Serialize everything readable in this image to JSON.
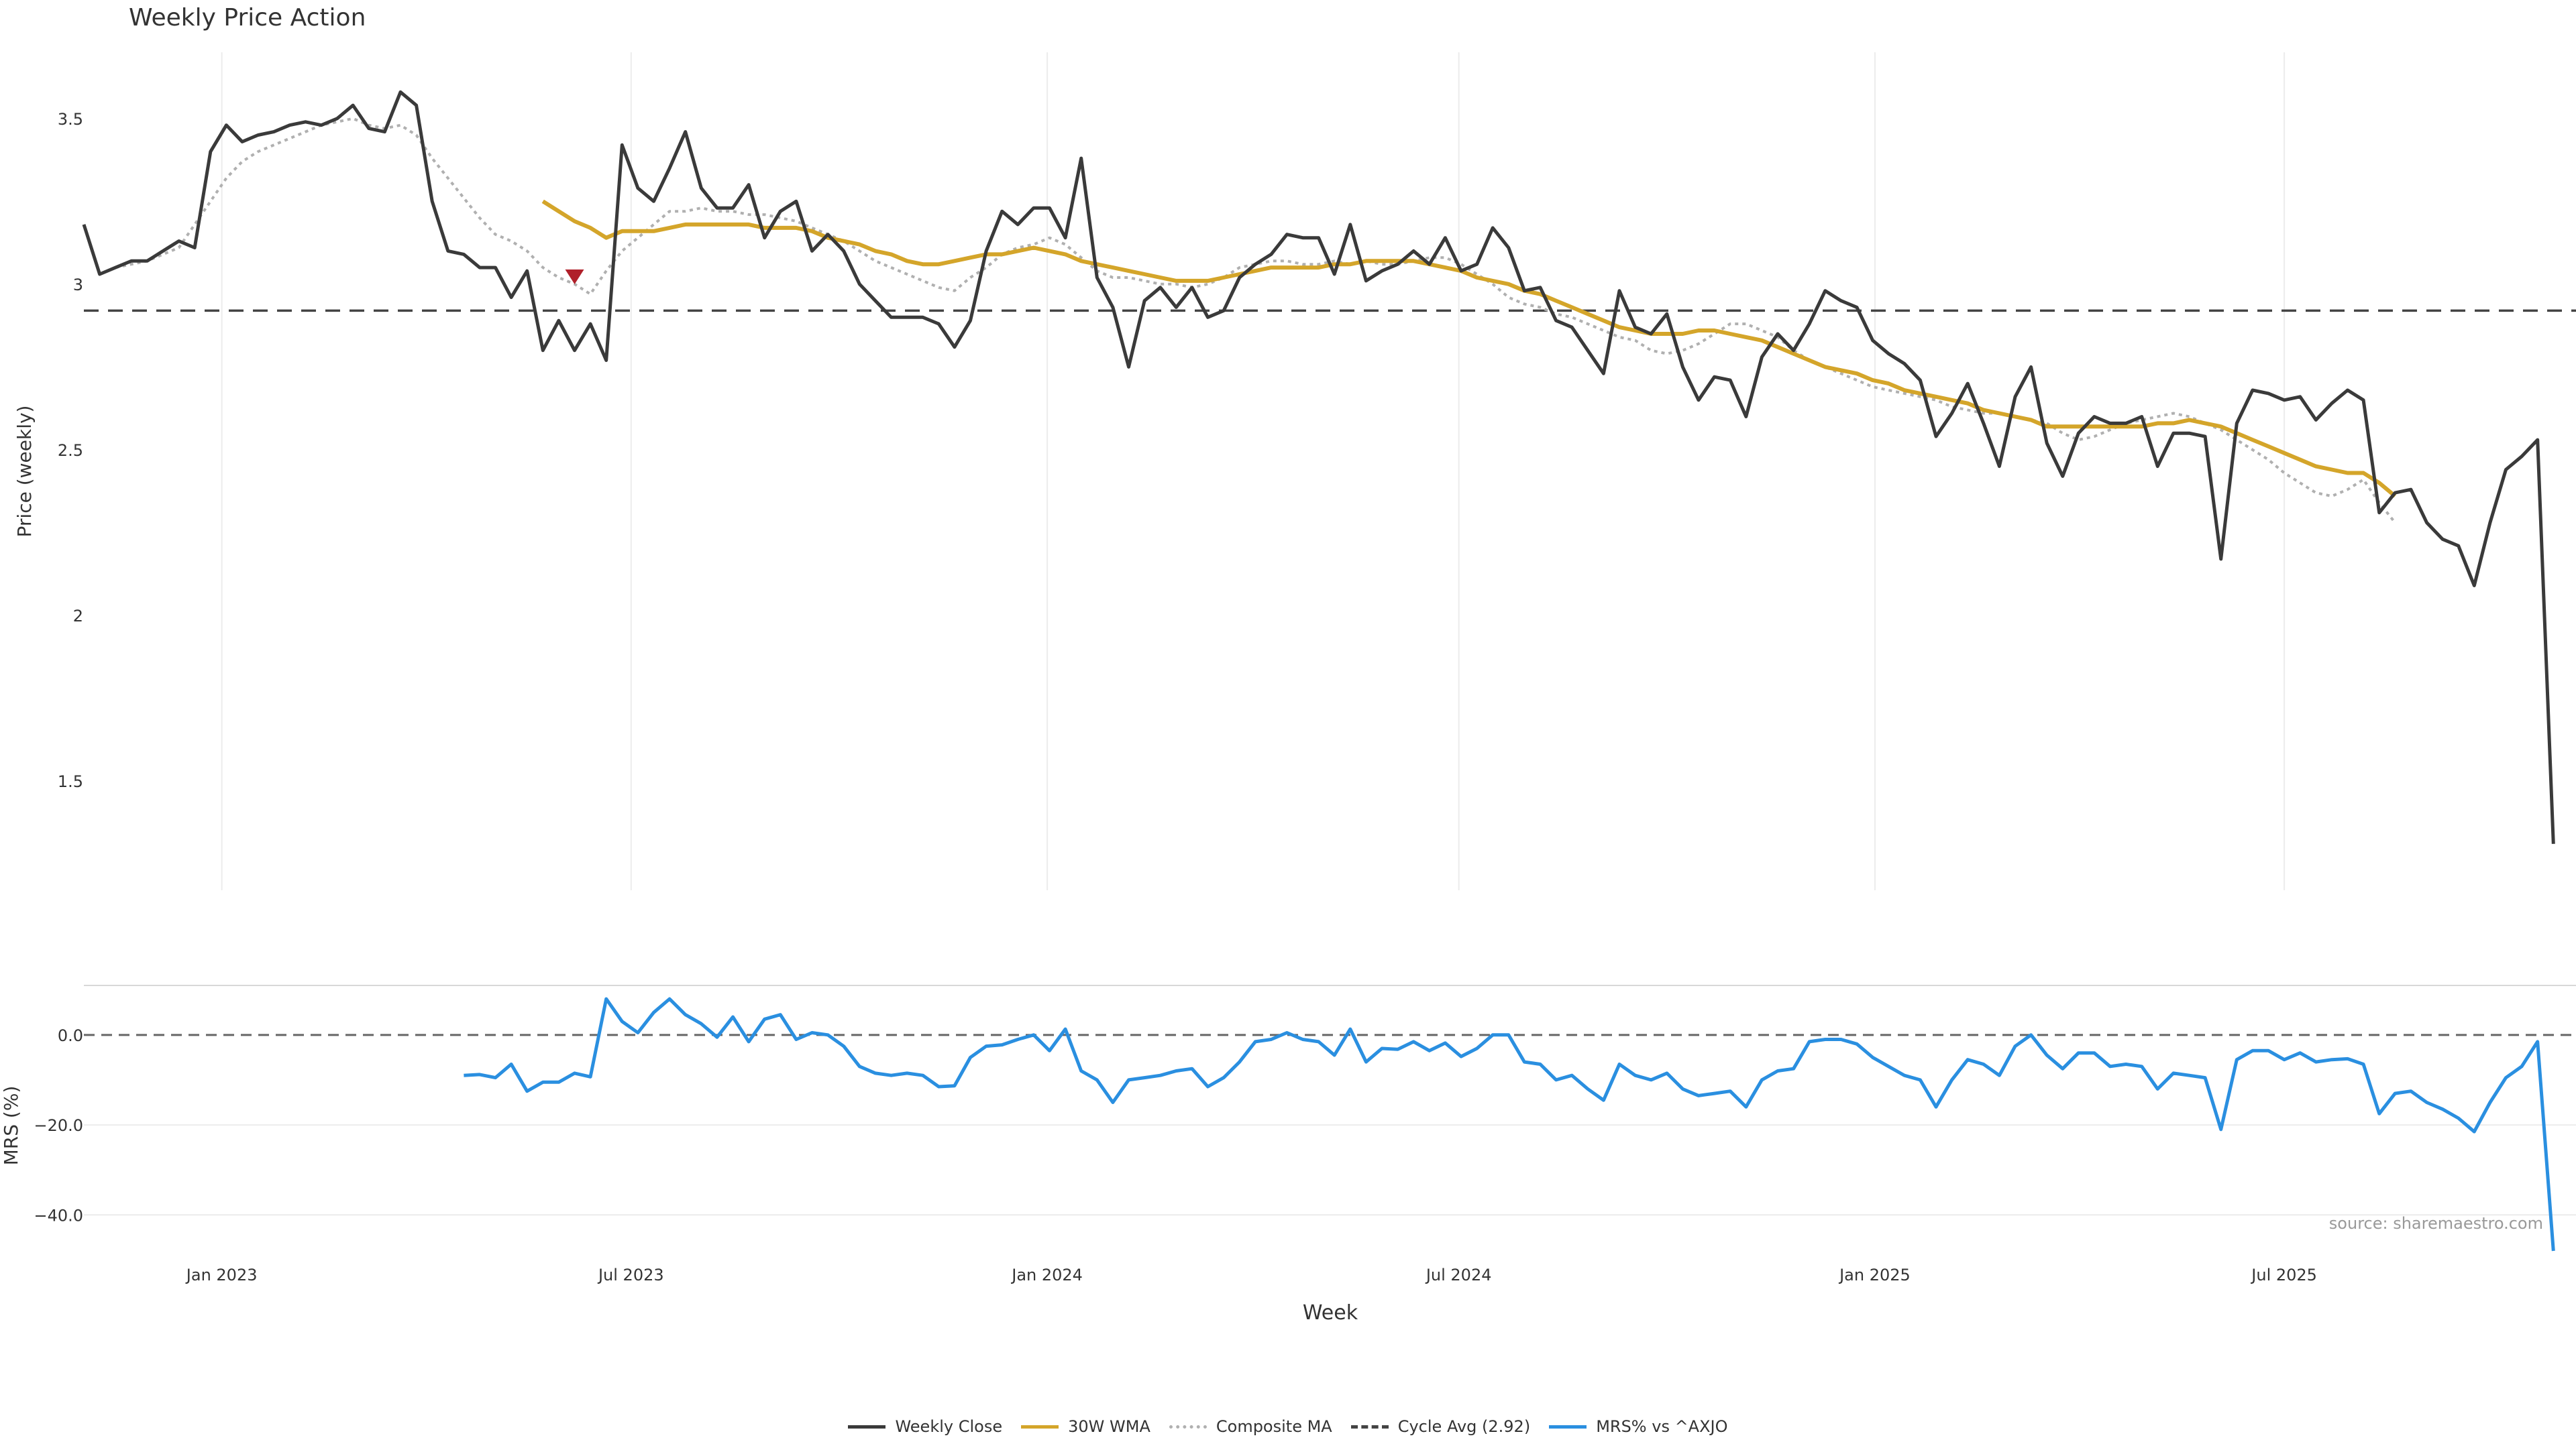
{
  "chart_data": [
    {
      "panel": "price",
      "type": "line",
      "title": "Weekly Price Action",
      "ylabel": "Price (weekly)",
      "ylim": [
        1.17,
        3.7
      ],
      "yticks": [
        1.5,
        2,
        2.5,
        3,
        3.5
      ],
      "ytick_labels": [
        "1.5",
        "2",
        "2.5",
        "3",
        "3.5"
      ],
      "x_start": "2022-11-01",
      "x_end": "2025-11-07",
      "grid": "vertical",
      "colors": {
        "close": "#3a3a3a",
        "wma": "#d4a52a",
        "composite": "#b0b0b0",
        "cycle": "#444444",
        "marker": "#b0202a"
      },
      "series": [
        {
          "name": "Weekly Close",
          "x_start": "2022-11-01",
          "x_step_days": 7,
          "values": [
            3.18,
            3.03,
            3.05,
            3.07,
            3.07,
            3.1,
            3.13,
            3.11,
            3.4,
            3.48,
            3.43,
            3.45,
            3.46,
            3.48,
            3.49,
            3.48,
            3.5,
            3.54,
            3.47,
            3.46,
            3.58,
            3.54,
            3.25,
            3.1,
            3.09,
            3.05,
            3.05,
            2.96,
            3.04,
            2.8,
            2.89,
            2.8,
            2.88,
            2.77,
            3.42,
            3.29,
            3.25,
            3.35,
            3.46,
            3.29,
            3.23,
            3.23,
            3.3,
            3.14,
            3.22,
            3.25,
            3.1,
            3.15,
            3.1,
            3.0,
            2.95,
            2.9,
            2.9,
            2.9,
            2.88,
            2.81,
            2.89,
            3.1,
            3.22,
            3.18,
            3.23,
            3.23,
            3.14,
            3.38,
            3.02,
            2.93,
            2.75,
            2.95,
            2.99,
            2.93,
            2.99,
            2.9,
            2.92,
            3.02,
            3.06,
            3.09,
            3.15,
            3.14,
            3.14,
            3.03,
            3.18,
            3.01,
            3.04,
            3.06,
            3.1,
            3.06,
            3.14,
            3.04,
            3.06,
            3.17,
            3.11,
            2.98,
            2.99,
            2.89,
            2.87,
            2.8,
            2.73,
            2.98,
            2.87,
            2.85,
            2.91,
            2.75,
            2.65,
            2.72,
            2.71,
            2.6,
            2.78,
            2.85,
            2.8,
            2.88,
            2.98,
            2.95,
            2.93,
            2.83,
            2.79,
            2.76,
            2.71,
            2.54,
            2.61,
            2.7,
            2.58,
            2.45,
            2.66,
            2.75,
            2.52,
            2.42,
            2.55,
            2.6,
            2.58,
            2.58,
            2.6,
            2.45,
            2.55,
            2.55,
            2.54,
            2.17,
            2.58,
            2.68,
            2.67,
            2.65,
            2.66,
            2.59,
            2.64,
            2.68,
            2.65,
            2.31,
            2.37,
            2.38,
            2.28,
            2.23,
            2.21,
            2.09,
            2.28,
            2.44,
            2.48,
            2.53,
            1.31
          ]
        },
        {
          "name": "30W WMA",
          "x_start": "2023-05-23",
          "x_step_days": 7,
          "values": [
            3.25,
            3.22,
            3.19,
            3.17,
            3.14,
            3.16,
            3.16,
            3.16,
            3.17,
            3.18,
            3.18,
            3.18,
            3.18,
            3.18,
            3.17,
            3.17,
            3.17,
            3.16,
            3.14,
            3.13,
            3.12,
            3.1,
            3.09,
            3.07,
            3.06,
            3.06,
            3.07,
            3.08,
            3.09,
            3.09,
            3.1,
            3.11,
            3.1,
            3.09,
            3.07,
            3.06,
            3.05,
            3.04,
            3.03,
            3.02,
            3.01,
            3.01,
            3.01,
            3.02,
            3.03,
            3.04,
            3.05,
            3.05,
            3.05,
            3.05,
            3.06,
            3.06,
            3.07,
            3.07,
            3.07,
            3.07,
            3.06,
            3.05,
            3.04,
            3.02,
            3.01,
            3.0,
            2.98,
            2.97,
            2.95,
            2.93,
            2.91,
            2.89,
            2.87,
            2.86,
            2.85,
            2.85,
            2.85,
            2.86,
            2.86,
            2.85,
            2.84,
            2.83,
            2.81,
            2.79,
            2.77,
            2.75,
            2.74,
            2.73,
            2.71,
            2.7,
            2.68,
            2.67,
            2.66,
            2.65,
            2.64,
            2.62,
            2.61,
            2.6,
            2.59,
            2.57,
            2.57,
            2.57,
            2.57,
            2.57,
            2.57,
            2.57,
            2.58,
            2.58,
            2.59,
            2.58,
            2.57,
            2.55,
            2.53,
            2.51,
            2.49,
            2.47,
            2.45,
            2.44,
            2.43,
            2.43,
            2.4,
            2.36
          ]
        },
        {
          "name": "Composite MA",
          "x_start": "2022-11-15",
          "x_step_days": 7,
          "values": [
            3.05,
            3.06,
            3.07,
            3.09,
            3.11,
            3.18,
            3.25,
            3.32,
            3.37,
            3.4,
            3.42,
            3.44,
            3.46,
            3.48,
            3.49,
            3.5,
            3.48,
            3.47,
            3.48,
            3.45,
            3.38,
            3.32,
            3.26,
            3.2,
            3.15,
            3.13,
            3.1,
            3.05,
            3.02,
            3.0,
            2.97,
            3.04,
            3.1,
            3.14,
            3.18,
            3.22,
            3.22,
            3.23,
            3.22,
            3.22,
            3.21,
            3.21,
            3.2,
            3.19,
            3.17,
            3.15,
            3.13,
            3.1,
            3.07,
            3.05,
            3.03,
            3.01,
            2.99,
            2.98,
            3.02,
            3.05,
            3.09,
            3.11,
            3.12,
            3.14,
            3.12,
            3.08,
            3.04,
            3.02,
            3.02,
            3.01,
            3.0,
            3.0,
            2.99,
            3.0,
            3.02,
            3.05,
            3.06,
            3.07,
            3.07,
            3.06,
            3.06,
            3.07,
            3.06,
            3.07,
            3.06,
            3.06,
            3.07,
            3.08,
            3.08,
            3.06,
            3.03,
            3.0,
            2.96,
            2.94,
            2.93,
            2.91,
            2.9,
            2.88,
            2.86,
            2.84,
            2.83,
            2.8,
            2.79,
            2.8,
            2.82,
            2.85,
            2.88,
            2.88,
            2.86,
            2.84,
            2.8,
            2.77,
            2.75,
            2.73,
            2.71,
            2.69,
            2.68,
            2.67,
            2.66,
            2.65,
            2.63,
            2.62,
            2.61,
            2.61,
            2.6,
            2.59,
            2.58,
            2.55,
            2.53,
            2.54,
            2.56,
            2.58,
            2.59,
            2.6,
            2.61,
            2.6,
            2.58,
            2.56,
            2.53,
            2.5,
            2.47,
            2.43,
            2.4,
            2.37,
            2.36,
            2.38,
            2.41,
            2.34,
            2.28
          ]
        },
        {
          "name": "Cycle Avg (2.92)",
          "value": 2.92
        }
      ],
      "markers": [
        {
          "kind": "down-triangle",
          "x": "2023-06-06",
          "y": 3.02
        }
      ]
    },
    {
      "panel": "mrs",
      "type": "line",
      "ylabel": "MRS (%)",
      "ylim": [
        -48,
        11
      ],
      "yticks": [
        0.0,
        -20.0,
        -40.0
      ],
      "ytick_labels": [
        "0.0",
        "−20.0",
        "−40.0"
      ],
      "zero_line": true,
      "colors": {
        "mrs": "#2a8fe0",
        "zero": "#666666"
      },
      "series": [
        {
          "name": "MRS% vs ^AXJO",
          "x_start": "2023-04-18",
          "x_step_days": 7,
          "values": [
            -9,
            -8.8,
            -9.5,
            -6.5,
            -12.5,
            -10.5,
            -10.5,
            -8.5,
            -9.3,
            8,
            3,
            0.5,
            5,
            8,
            4.5,
            2.5,
            -0.5,
            4,
            -1.5,
            3.5,
            4.5,
            -1,
            0.5,
            0,
            -2.5,
            -7,
            -8.5,
            -9,
            -8.5,
            -9,
            -11.5,
            -11.3,
            -5,
            -2.5,
            -2.2,
            -1,
            0,
            -3.5,
            1.3,
            -8,
            -10,
            -15,
            -10,
            -9.5,
            -9,
            -8,
            -7.5,
            -11.5,
            -9.5,
            -6,
            -1.5,
            -1,
            0.5,
            -1,
            -1.5,
            -4.5,
            1.3,
            -6,
            -3,
            -3.2,
            -1.5,
            -3.5,
            -1.8,
            -4.8,
            -3,
            0,
            0,
            -6,
            -6.5,
            -10,
            -9,
            -12,
            -14.5,
            -6.5,
            -9,
            -10,
            -8.5,
            -12,
            -13.5,
            -13,
            -12.5,
            -16,
            -10,
            -8,
            -7.5,
            -1.5,
            -1,
            -1,
            -2,
            -5,
            -7,
            -9,
            -10,
            -16,
            -10,
            -5.5,
            -6.5,
            -9,
            -2.5,
            0,
            -4.5,
            -7.5,
            -4,
            -4,
            -7,
            -6.5,
            -7,
            -12,
            -8.5,
            -9,
            -9.5,
            -21,
            -5.5,
            -3.5,
            -3.5,
            -5.5,
            -4,
            -6,
            -5.5,
            -5.3,
            -6.5,
            -17.5,
            -13,
            -12.5,
            -15,
            -16.5,
            -18.5,
            -21.5,
            -15,
            -9.5,
            -7,
            -1.5,
            -48
          ]
        }
      ]
    }
  ],
  "x_axis": {
    "label": "Week",
    "ticks": [
      {
        "date": "2023-01-01",
        "label": "Jan 2023"
      },
      {
        "date": "2023-07-01",
        "label": "Jul 2023"
      },
      {
        "date": "2024-01-01",
        "label": "Jan 2024"
      },
      {
        "date": "2024-07-01",
        "label": "Jul 2024"
      },
      {
        "date": "2025-01-01",
        "label": "Jan 2025"
      },
      {
        "date": "2025-07-01",
        "label": "Jul 2025"
      }
    ]
  },
  "legend": {
    "placement": "bottom-center",
    "items": [
      {
        "label": "Weekly Close",
        "color": "#3a3a3a",
        "style": "solid"
      },
      {
        "label": "30W WMA",
        "color": "#d4a52a",
        "style": "solid"
      },
      {
        "label": "Composite MA",
        "color": "#b0b0b0",
        "style": "dotted"
      },
      {
        "label": "Cycle Avg (2.92)",
        "color": "#444444",
        "style": "dashed"
      },
      {
        "label": "MRS% vs ^AXJO",
        "color": "#2a8fe0",
        "style": "solid"
      }
    ]
  },
  "source": "source: sharemaestro.com"
}
